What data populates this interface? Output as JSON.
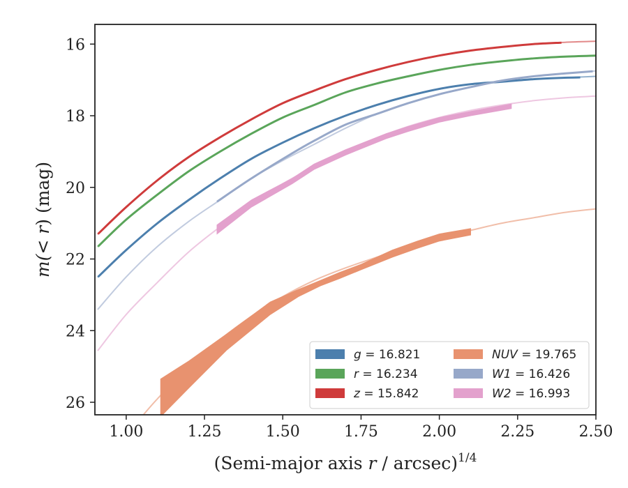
{
  "chart_data": {
    "type": "line",
    "xlabel": {
      "main": "(Semi-major axis ",
      "var": "r",
      "rest": " / arcsec)",
      "sup": "1/4"
    },
    "ylabel": {
      "pre": "m(",
      "mid": "< r",
      "post": ") (mag)"
    },
    "xlim": [
      0.9,
      2.5
    ],
    "ylim": [
      26.35,
      15.45
    ],
    "y_inverted": true,
    "xticks": [
      "1.00",
      "1.25",
      "1.50",
      "1.75",
      "2.00",
      "2.25",
      "2.50"
    ],
    "xtick_values": [
      1.0,
      1.25,
      1.5,
      1.75,
      2.0,
      2.25,
      2.5
    ],
    "yticks": [
      "16",
      "18",
      "20",
      "22",
      "24",
      "26"
    ],
    "ytick_values": [
      16,
      18,
      20,
      22,
      24,
      26
    ],
    "grid": false,
    "legend": {
      "position": "lower-right",
      "columns": 2
    },
    "series": [
      {
        "name": "g = 16.821",
        "legend_var": "g",
        "legend_value": "= 16.821",
        "color": "#4c7fad",
        "extrapolated": {
          "x": [
            0.91,
            1.0,
            1.1,
            1.2,
            1.3,
            1.4,
            1.5,
            1.6,
            1.7,
            1.8,
            1.9,
            2.0,
            2.1,
            2.2,
            2.3,
            2.4,
            2.5
          ],
          "y": [
            22.5,
            21.75,
            21.0,
            20.35,
            19.75,
            19.2,
            18.75,
            18.35,
            18.0,
            17.7,
            17.45,
            17.25,
            17.12,
            17.05,
            16.98,
            16.94,
            16.9
          ]
        },
        "measured": {
          "x": [
            0.91,
            1.0,
            1.1,
            1.2,
            1.3,
            1.4,
            1.5,
            1.6,
            1.7,
            1.8,
            1.9,
            2.0,
            2.1,
            2.2,
            2.3,
            2.4,
            2.45
          ],
          "y": [
            22.5,
            21.75,
            21.0,
            20.35,
            19.75,
            19.2,
            18.75,
            18.35,
            18.0,
            17.7,
            17.45,
            17.25,
            17.12,
            17.05,
            16.98,
            16.94,
            16.93
          ]
        }
      },
      {
        "name": "r = 16.234",
        "legend_var": "r",
        "legend_value": "= 16.234",
        "color": "#5aa55a",
        "extrapolated": {
          "x": [
            0.91,
            1.0,
            1.1,
            1.2,
            1.3,
            1.4,
            1.5,
            1.6,
            1.7,
            1.8,
            1.9,
            2.0,
            2.1,
            2.2,
            2.3,
            2.4,
            2.5
          ],
          "y": [
            21.65,
            20.9,
            20.2,
            19.55,
            19.0,
            18.5,
            18.05,
            17.7,
            17.35,
            17.1,
            16.9,
            16.72,
            16.58,
            16.48,
            16.4,
            16.35,
            16.32
          ]
        },
        "measured": {
          "x": [
            0.91,
            1.0,
            1.1,
            1.2,
            1.3,
            1.4,
            1.5,
            1.6,
            1.7,
            1.8,
            1.9,
            2.0,
            2.1,
            2.2,
            2.3,
            2.4,
            2.5
          ],
          "y": [
            21.65,
            20.9,
            20.2,
            19.55,
            19.0,
            18.5,
            18.05,
            17.7,
            17.35,
            17.1,
            16.9,
            16.72,
            16.58,
            16.48,
            16.4,
            16.35,
            16.32
          ]
        }
      },
      {
        "name": "z = 15.842",
        "legend_var": "z",
        "legend_value": "= 15.842",
        "color": "#cf3b3b",
        "extrapolated": {
          "x": [
            0.91,
            1.0,
            1.1,
            1.2,
            1.3,
            1.4,
            1.5,
            1.6,
            1.7,
            1.8,
            1.9,
            2.0,
            2.1,
            2.2,
            2.3,
            2.4,
            2.5
          ],
          "y": [
            21.3,
            20.55,
            19.8,
            19.15,
            18.6,
            18.1,
            17.65,
            17.3,
            16.98,
            16.72,
            16.5,
            16.32,
            16.18,
            16.08,
            16.0,
            15.95,
            15.92
          ]
        },
        "measured": {
          "x": [
            0.91,
            1.0,
            1.1,
            1.2,
            1.3,
            1.4,
            1.5,
            1.6,
            1.7,
            1.8,
            1.9,
            2.0,
            2.1,
            2.2,
            2.3,
            2.39
          ],
          "y": [
            21.3,
            20.55,
            19.8,
            19.15,
            18.6,
            18.1,
            17.65,
            17.3,
            16.98,
            16.72,
            16.5,
            16.32,
            16.18,
            16.08,
            16.0,
            15.96
          ]
        }
      },
      {
        "name": "NUV = 19.765",
        "legend_var": "NUV",
        "legend_value": "= 19.765",
        "color": "#e8926f",
        "extrapolated": {
          "x": [
            1.05,
            1.1,
            1.2,
            1.3,
            1.4,
            1.5,
            1.6,
            1.7,
            1.8,
            1.9,
            2.0,
            2.1,
            2.2,
            2.3,
            2.4,
            2.5
          ],
          "y": [
            26.4,
            25.9,
            25.0,
            24.25,
            23.6,
            23.05,
            22.6,
            22.25,
            21.95,
            21.65,
            21.4,
            21.2,
            21.0,
            20.85,
            20.7,
            20.6
          ]
        },
        "measured_band": {
          "x": [
            1.11,
            1.2,
            1.32,
            1.46,
            1.55,
            1.62,
            1.68,
            1.75,
            1.85,
            1.93,
            2.0,
            2.1
          ],
          "y_low": [
            25.35,
            24.85,
            24.1,
            23.2,
            22.85,
            22.6,
            22.38,
            22.15,
            21.75,
            21.5,
            21.3,
            21.15
          ],
          "y_high": [
            26.4,
            25.6,
            24.55,
            23.55,
            23.05,
            22.75,
            22.55,
            22.3,
            21.95,
            21.7,
            21.5,
            21.33
          ]
        }
      },
      {
        "name": "W1 = 16.426",
        "legend_var": "W1",
        "legend_value": "= 16.426",
        "color": "#97a8c9",
        "extrapolated": {
          "x": [
            0.91,
            1.0,
            1.1,
            1.2,
            1.3,
            1.4,
            1.5,
            1.6,
            1.7,
            1.8,
            1.9,
            2.0,
            2.1,
            2.2,
            2.3,
            2.4,
            2.5
          ],
          "y": [
            23.4,
            22.5,
            21.65,
            20.95,
            20.35,
            19.75,
            19.25,
            18.8,
            18.35,
            17.95,
            17.65,
            17.4,
            17.2,
            17.02,
            16.9,
            16.82,
            16.75
          ]
        },
        "measured": {
          "x": [
            1.29,
            1.4,
            1.53,
            1.6,
            1.7,
            1.8,
            1.9,
            2.0,
            2.1,
            2.2,
            2.3,
            2.4,
            2.49
          ],
          "y": [
            20.4,
            19.75,
            19.05,
            18.7,
            18.25,
            17.95,
            17.65,
            17.4,
            17.2,
            17.02,
            16.9,
            16.82,
            16.76
          ]
        }
      },
      {
        "name": "W2 = 16.993",
        "legend_var": "W2",
        "legend_value": "= 16.993",
        "color": "#e3a1cd",
        "extrapolated": {
          "x": [
            0.91,
            1.0,
            1.1,
            1.2,
            1.3,
            1.4,
            1.5,
            1.6,
            1.7,
            1.8,
            1.9,
            2.0,
            2.1,
            2.2,
            2.3,
            2.4,
            2.5
          ],
          "y": [
            24.55,
            23.55,
            22.65,
            21.8,
            21.1,
            20.45,
            19.9,
            19.42,
            19.0,
            18.62,
            18.3,
            18.05,
            17.85,
            17.7,
            17.58,
            17.5,
            17.45
          ]
        },
        "measured_band": {
          "x": [
            1.29,
            1.4,
            1.53,
            1.6,
            1.7,
            1.83,
            1.9,
            2.0,
            2.1,
            2.23
          ],
          "y_low": [
            21.05,
            20.35,
            19.75,
            19.35,
            18.95,
            18.5,
            18.3,
            18.05,
            17.88,
            17.67
          ],
          "y_high": [
            21.3,
            20.55,
            19.9,
            19.5,
            19.1,
            18.64,
            18.44,
            18.18,
            18.0,
            17.8
          ]
        }
      }
    ]
  }
}
